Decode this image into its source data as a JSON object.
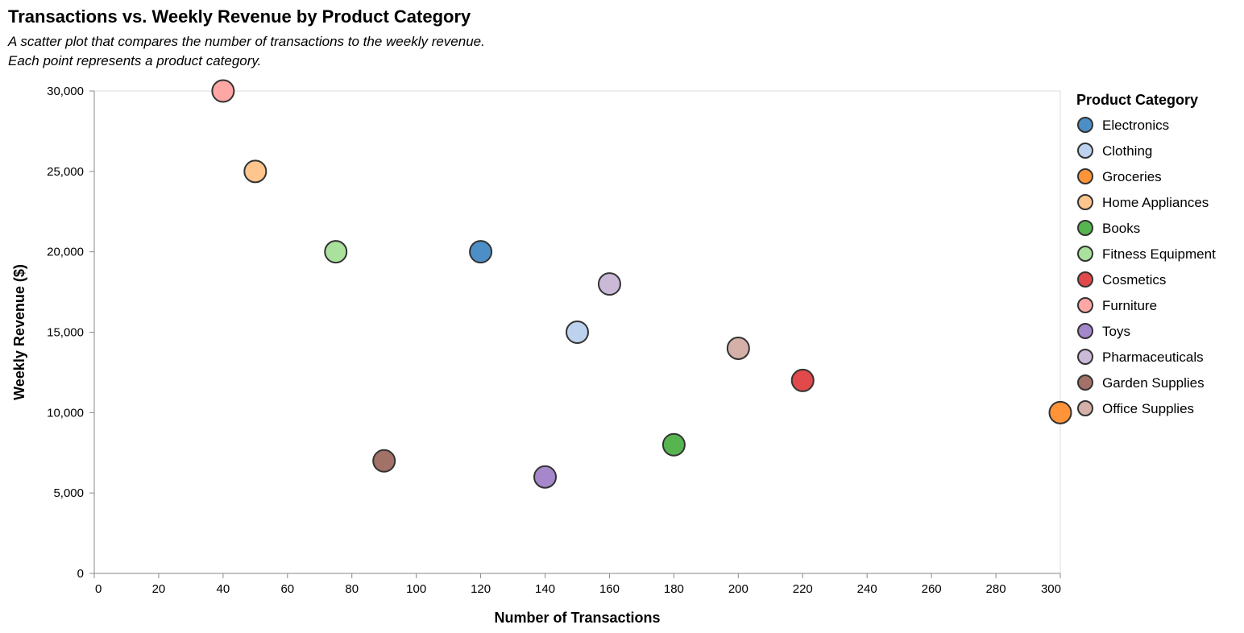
{
  "chart_data": {
    "type": "scatter",
    "title": "Transactions vs. Weekly Revenue by Product Category",
    "subtitle": [
      "A scatter plot that compares the number of transactions to the weekly revenue.",
      "Each point represents a product category."
    ],
    "xlabel": "Number of Transactions",
    "ylabel": "Weekly Revenue ($)",
    "xlim": [
      0,
      300
    ],
    "ylim": [
      0,
      30000
    ],
    "x_ticks": [
      0,
      20,
      40,
      60,
      80,
      100,
      120,
      140,
      160,
      180,
      200,
      220,
      240,
      260,
      280,
      300
    ],
    "y_ticks": [
      0,
      5000,
      10000,
      15000,
      20000,
      25000,
      30000
    ],
    "x_tick_labels": [
      "0",
      "20",
      "40",
      "60",
      "80",
      "100",
      "120",
      "140",
      "160",
      "180",
      "200",
      "220",
      "240",
      "260",
      "280",
      "300"
    ],
    "y_tick_labels": [
      "0",
      "5,000",
      "10,000",
      "15,000",
      "20,000",
      "25,000",
      "30,000"
    ],
    "grid": false,
    "legend_title": "Product Category",
    "legend_position": "right",
    "points": [
      {
        "category": "Electronics",
        "x": 120,
        "y": 20000,
        "color": "#4c8fc7"
      },
      {
        "category": "Clothing",
        "x": 150,
        "y": 15000,
        "color": "#bdd2ee"
      },
      {
        "category": "Groceries",
        "x": 300,
        "y": 10000,
        "color": "#ff9338"
      },
      {
        "category": "Home Appliances",
        "x": 50,
        "y": 25000,
        "color": "#ffc58e"
      },
      {
        "category": "Books",
        "x": 180,
        "y": 8000,
        "color": "#57b550"
      },
      {
        "category": "Fitness Equipment",
        "x": 75,
        "y": 20000,
        "color": "#a9e19d"
      },
      {
        "category": "Cosmetics",
        "x": 220,
        "y": 12000,
        "color": "#e1494a"
      },
      {
        "category": "Furniture",
        "x": 40,
        "y": 30000,
        "color": "#ffa7a5"
      },
      {
        "category": "Toys",
        "x": 140,
        "y": 6000,
        "color": "#a587cc"
      },
      {
        "category": "Pharmaceuticals",
        "x": 160,
        "y": 18000,
        "color": "#cbb9d8"
      },
      {
        "category": "Garden Supplies",
        "x": 90,
        "y": 7000,
        "color": "#a27167"
      },
      {
        "category": "Office Supplies",
        "x": 200,
        "y": 14000,
        "color": "#d4b0a8"
      }
    ]
  }
}
